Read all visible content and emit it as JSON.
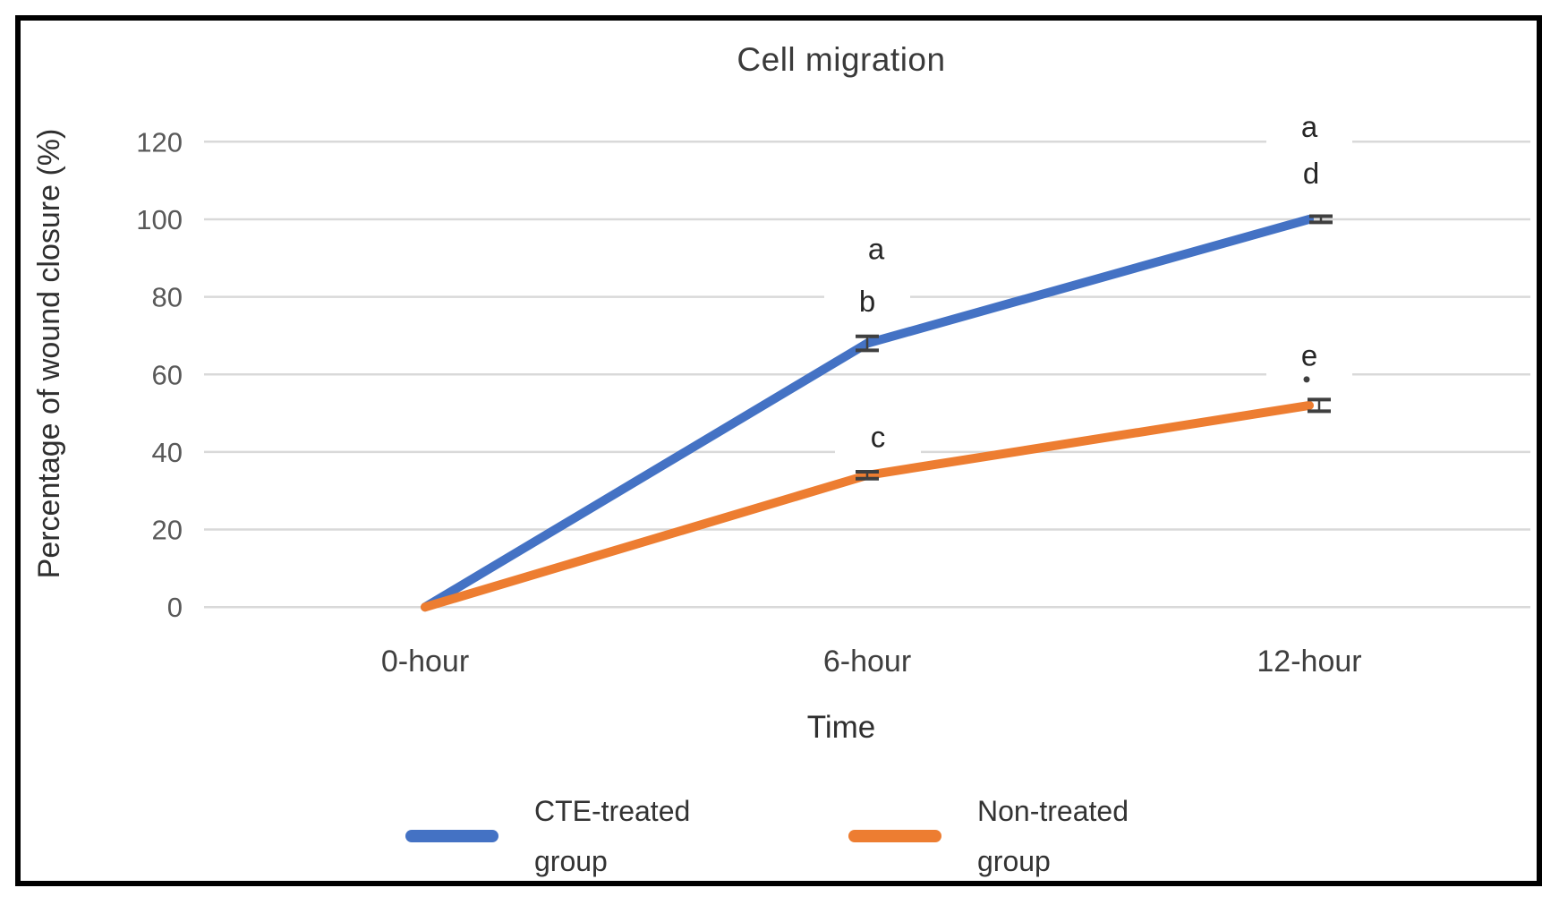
{
  "chart_data": {
    "type": "line",
    "title": "Cell migration",
    "xlabel": "Time",
    "ylabel": "Percentage of wound closure (%)",
    "categories": [
      "0-hour",
      "6-hour",
      "12-hour"
    ],
    "series": [
      {
        "name": "CTE-treated group",
        "legend_lines": [
          "CTE-treated",
          "group"
        ],
        "color": "#4472C4",
        "values": [
          0,
          68,
          100
        ]
      },
      {
        "name": "Non-treated group",
        "legend_lines": [
          "Non-treated",
          "group"
        ],
        "color": "#ED7D31",
        "values": [
          0,
          34,
          52
        ]
      }
    ],
    "yticks": [
      0,
      20,
      40,
      60,
      80,
      100,
      120
    ],
    "ylim": [
      0,
      120
    ],
    "grid": "horizontal-only",
    "legend_position": "bottom",
    "annotations": [
      {
        "text": "a",
        "category_index": 1,
        "value": 92.5,
        "dx": 10
      },
      {
        "text": "b",
        "category_index": 1,
        "value": 79,
        "dx": 0
      },
      {
        "text": "c",
        "category_index": 1,
        "value": 44,
        "dx": 12
      },
      {
        "text": "a",
        "category_index": 2,
        "value": 124,
        "dx": 0
      },
      {
        "text": "d",
        "category_index": 2,
        "value": 112,
        "dx": 2
      },
      {
        "text": "e",
        "category_index": 2,
        "value": 65,
        "dx": 0
      }
    ],
    "error_bars": [
      {
        "series_index": 0,
        "category_index": 1,
        "value": 68,
        "half_range": 1.8,
        "dx": 0
      },
      {
        "series_index": 0,
        "category_index": 2,
        "value": 100,
        "half_range": 0.8,
        "dx": 13
      },
      {
        "series_index": 1,
        "category_index": 1,
        "value": 34,
        "half_range": 0.9,
        "dx": 0
      },
      {
        "series_index": 1,
        "category_index": 2,
        "value": 52,
        "half_range": 1.5,
        "dx": 11
      }
    ],
    "extra_marks": [
      {
        "category_index": 2,
        "value": 58.7,
        "dx": -3
      }
    ],
    "colors": {
      "gridline": "#d9d9d9",
      "tick_label": "#595959",
      "category_label": "#3f3f3f",
      "error_bar": "#3f3f3f",
      "annotation": "#262626",
      "frame_border": "#000000"
    }
  }
}
